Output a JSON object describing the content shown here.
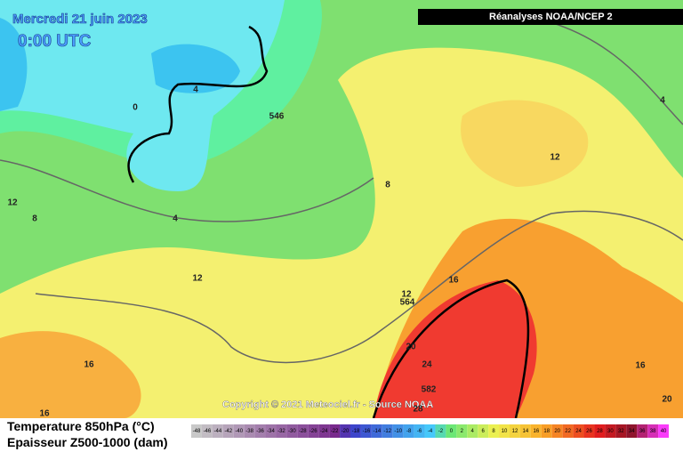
{
  "header": {
    "date": "Mercredi 21 juin 2023",
    "time": "0:00 UTC",
    "source": "Réanalyses NOAA/NCEP 2"
  },
  "copyright": "Copyright © 2021 Meteociel.fr - Source NOAA",
  "legend": {
    "temperature": "Temperature 850hPa (°C)",
    "thickness": "Epaisseur Z500-1000 (dam)",
    "scale": [
      -48,
      -46,
      -44,
      -42,
      -40,
      -38,
      -36,
      -34,
      -32,
      -30,
      -28,
      -26,
      -24,
      -22,
      -20,
      -18,
      -16,
      -14,
      -12,
      -10,
      -8,
      -6,
      -4,
      -2,
      0,
      2,
      4,
      6,
      8,
      10,
      12,
      14,
      16,
      18,
      20,
      22,
      24,
      26,
      28,
      30,
      32,
      34,
      36,
      38,
      40
    ]
  },
  "contour_labels": [
    "0",
    "4",
    "546",
    "4",
    "12",
    "8",
    "8",
    "12",
    "4",
    "12",
    "16",
    "12",
    "564",
    "16",
    "20",
    "24",
    "582",
    "28",
    "16",
    "16",
    "20"
  ]
}
